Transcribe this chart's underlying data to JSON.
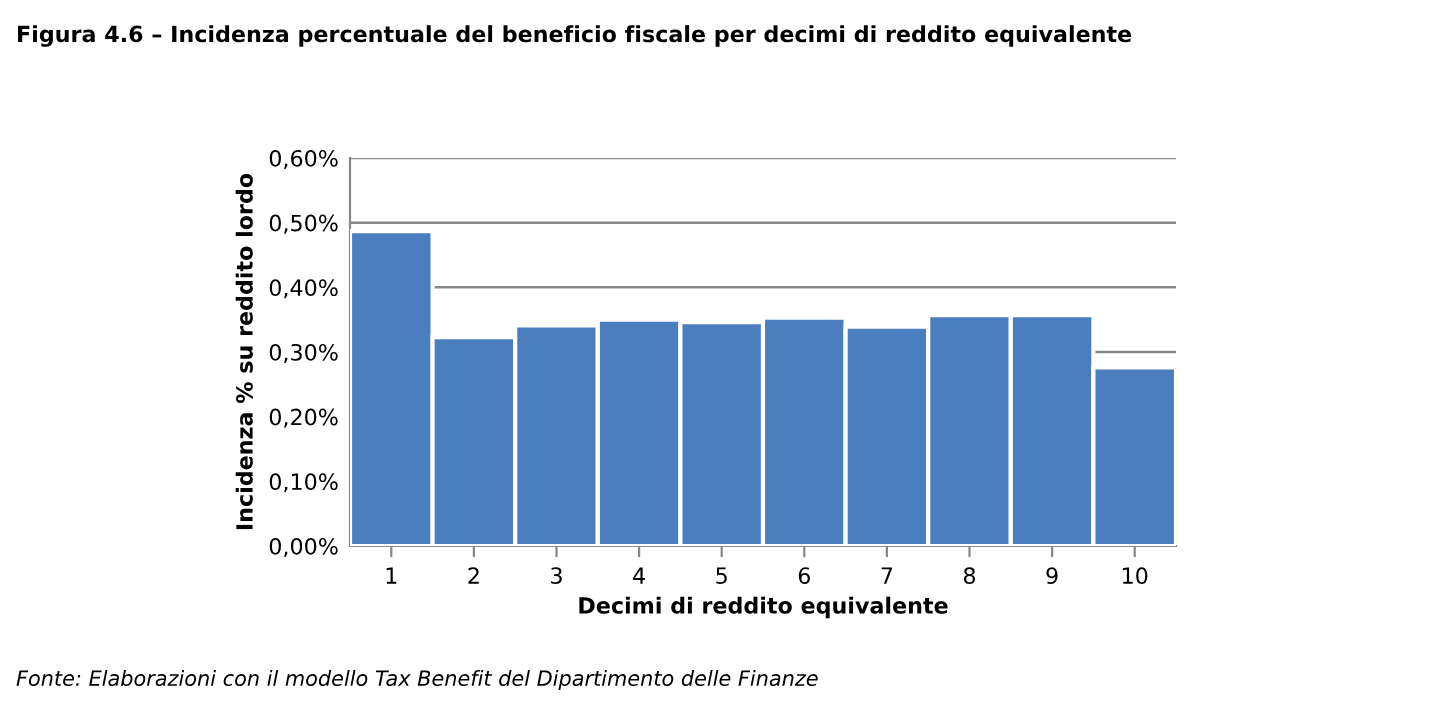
{
  "chart_data": {
    "type": "bar",
    "title": "Figura 4.6 – Incidenza percentuale del beneficio fiscale per decimi di reddito equivalente",
    "xlabel": "Decimi di reddito equivalente",
    "ylabel": "Incidenza % su reddito lordo",
    "categories": [
      "1",
      "2",
      "3",
      "4",
      "5",
      "6",
      "7",
      "8",
      "9",
      "10"
    ],
    "values": [
      0.487,
      0.323,
      0.341,
      0.35,
      0.346,
      0.353,
      0.339,
      0.357,
      0.357,
      0.276
    ],
    "color": "#4a7ebf",
    "ylim": [
      0,
      0.6
    ],
    "yticks": [
      {
        "value": 0,
        "label": "0,00%"
      },
      {
        "value": 0.1,
        "label": "0,10%"
      },
      {
        "value": 0.2,
        "label": "0,20%"
      },
      {
        "value": 0.3,
        "label": "0,30%"
      },
      {
        "value": 0.4,
        "label": "0,40%"
      },
      {
        "value": 0.5,
        "label": "0,50%"
      },
      {
        "value": 0.6,
        "label": "0,60%"
      }
    ],
    "grid": "y",
    "legend": false,
    "annotations": [
      "Fonte: Elaborazioni con il modello Tax Benefit del Dipartimento delle Finanze"
    ]
  }
}
